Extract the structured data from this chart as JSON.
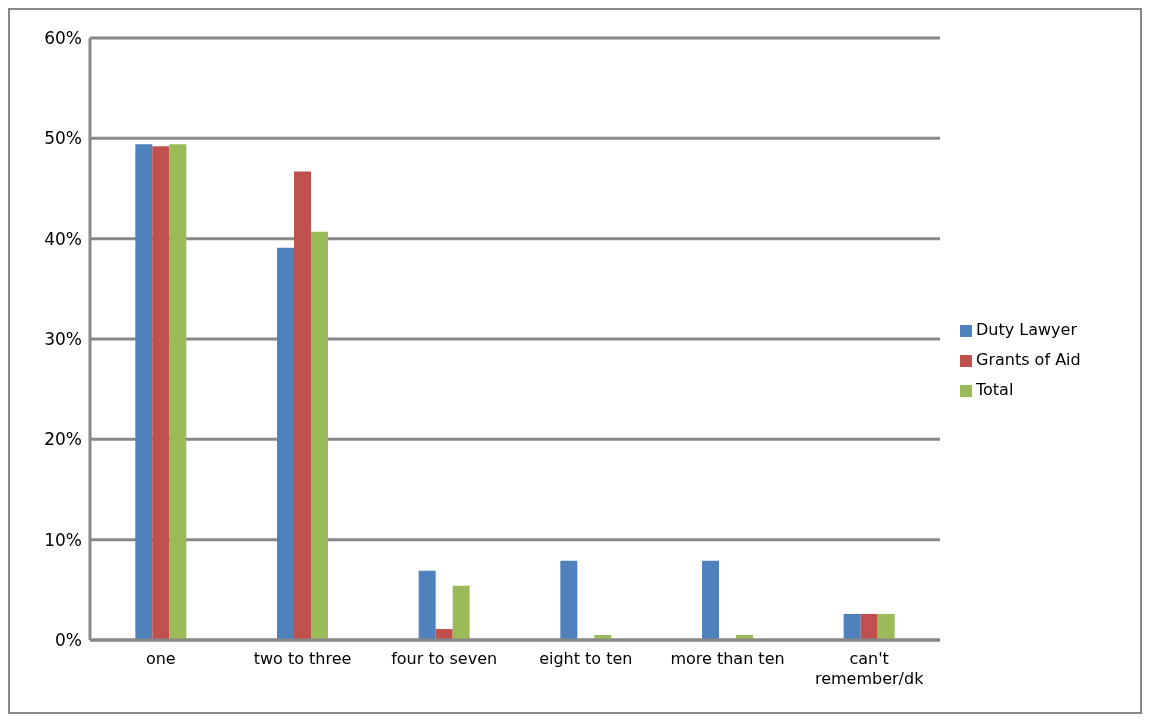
{
  "chart_data": {
    "type": "bar",
    "categories": [
      "one",
      "two to three",
      "four to seven",
      "eight to ten",
      "more than ten",
      "can't remember/dk"
    ],
    "series": [
      {
        "name": "Duty Lawyer",
        "color": "#4f81bd",
        "values": [
          49.4,
          39.1,
          6.9,
          7.9,
          7.9,
          2.6
        ]
      },
      {
        "name": "Grants of Aid",
        "color": "#c0504d",
        "values": [
          49.2,
          46.7,
          1.1,
          0,
          0,
          2.6
        ]
      },
      {
        "name": "Total",
        "color": "#9bbb59",
        "values": [
          49.4,
          40.7,
          5.4,
          0.5,
          0.5,
          2.6
        ]
      }
    ],
    "ylim": [
      0,
      60
    ],
    "yticks": [
      {
        "value": 0,
        "label": "0%"
      },
      {
        "value": 10,
        "label": "10%"
      },
      {
        "value": 20,
        "label": "20%"
      },
      {
        "value": 30,
        "label": "30%"
      },
      {
        "value": 40,
        "label": "40%"
      },
      {
        "value": 50,
        "label": "50%"
      },
      {
        "value": 60,
        "label": "60%"
      }
    ],
    "grid": "y",
    "legend": "right"
  }
}
